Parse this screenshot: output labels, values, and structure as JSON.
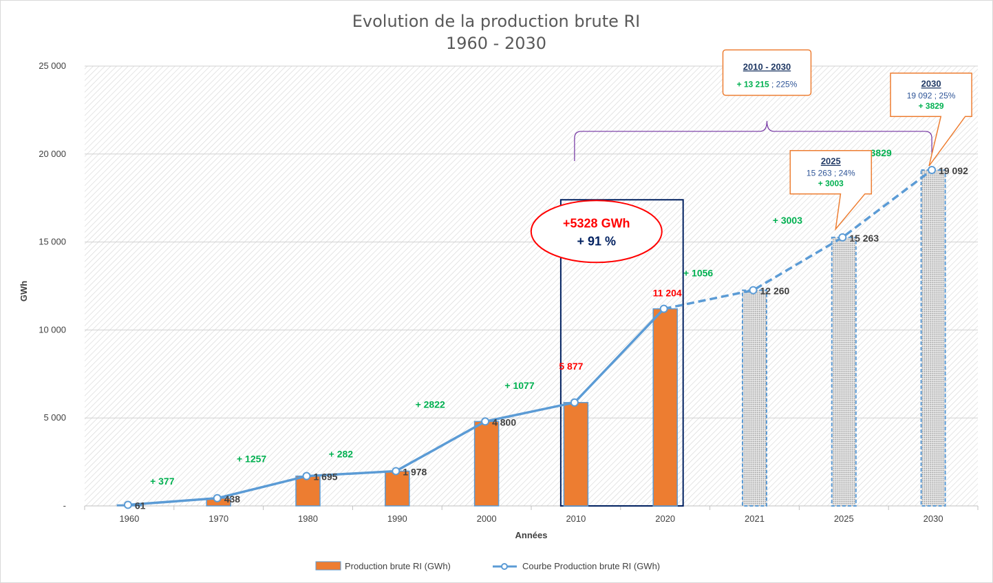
{
  "title_line1": "Evolution de la production brute RI",
  "title_line2": "1960 - 2030",
  "chart_data": {
    "type": "bar",
    "categories": [
      "1960",
      "1970",
      "1980",
      "1990",
      "2000",
      "2010",
      "2020",
      "2021",
      "2025",
      "2030"
    ],
    "xlabel": "Années",
    "ylabel": "GWh",
    "ylim": [
      0,
      25000
    ],
    "y_ticks": [
      0,
      5000,
      10000,
      15000,
      20000,
      25000
    ],
    "y_tick_labels": [
      "-",
      "5 000",
      "10 000",
      "15 000",
      "20 000",
      "25 000"
    ],
    "grid": true,
    "legend_position": "bottom",
    "series": [
      {
        "name": "Production brute RI (GWh)",
        "type": "bar",
        "values": [
          61,
          438,
          1695,
          1978,
          4800,
          5877,
          11204,
          12260,
          15263,
          19092
        ],
        "projected": [
          false,
          false,
          false,
          false,
          false,
          false,
          false,
          true,
          true,
          true
        ],
        "color": "#ed7d31"
      },
      {
        "name": "Courbe Production brute RI (GWh)",
        "type": "line",
        "values": [
          61,
          438,
          1695,
          1978,
          4800,
          5877,
          11204,
          12260,
          15263,
          19092
        ],
        "dashed_from_index": 6,
        "color": "#5b9bd5"
      }
    ],
    "value_labels": [
      "61",
      "438",
      "1 695",
      "1 978",
      "4 800",
      "5 877",
      "11 204",
      "12 260",
      "15 263",
      "19 092"
    ],
    "red_value_indices": [
      5,
      6
    ],
    "deltas": [
      {
        "label": "+ 377",
        "between": [
          0,
          1
        ]
      },
      {
        "label": "+ 1257",
        "between": [
          1,
          2
        ]
      },
      {
        "label": "+ 282",
        "between": [
          2,
          3
        ]
      },
      {
        "label": "+ 2822",
        "between": [
          3,
          4
        ]
      },
      {
        "label": "+ 1077",
        "between": [
          4,
          5
        ]
      },
      {
        "label": "+ 1056",
        "between": [
          6,
          7
        ]
      },
      {
        "label": "+ 3003",
        "between": [
          7,
          8
        ]
      },
      {
        "label": "+ 3829",
        "between": [
          8,
          9
        ]
      }
    ],
    "annotations": {
      "highlight": {
        "line1": "+5328 GWh",
        "line2": "+ 91 %"
      },
      "range_callout": {
        "title": "2010 - 2030",
        "value": "+ 13 215",
        "rest": " ; 225%"
      },
      "callout_2025": {
        "title": "2025",
        "text": "15 263 ; 24%",
        "delta": "+ 3003"
      },
      "callout_2030": {
        "title": "2030",
        "text": "19 092 ; 25%",
        "delta": "+ 3829"
      }
    }
  },
  "colors": {
    "bar": "#ed7d31",
    "line": "#5b9bd5",
    "projected_bar": "#5b9bd5",
    "highlight_box": "#002060",
    "ellipse": "#ff0000",
    "callout_border": "#ed7d31",
    "brace": "#7030a0",
    "delta": "#00b050",
    "red_value": "#ff0000"
  }
}
